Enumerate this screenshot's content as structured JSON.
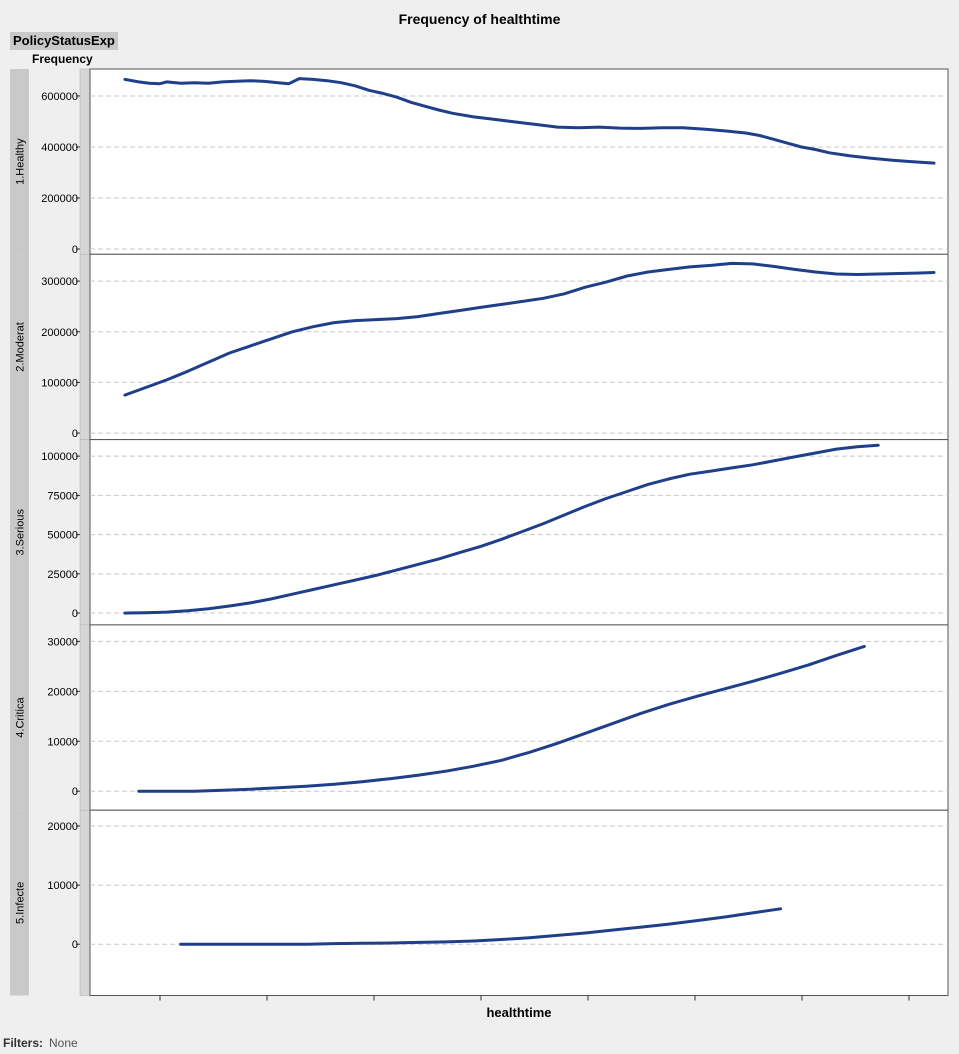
{
  "title": "Frequency of healthtime",
  "trellis_label": "PolicyStatusExp",
  "filters": {
    "label": "Filters:",
    "value": "None"
  },
  "colors": {
    "line": "#1f3f8a",
    "panel_label_bg": "#c9c9c9",
    "grid": "#c8c8c8"
  },
  "chart_data": {
    "type": "line",
    "title": "Frequency of healthtime",
    "xlabel": "healthtime",
    "ylabel": "Frequency",
    "x_tick_count": 8,
    "grid": "horizontal-dashed",
    "series_color": "#1f3f8a",
    "panels": [
      {
        "name": "1.Healthy",
        "ylim": [
          -5000,
          690000
        ],
        "yticks": [
          0,
          200000,
          400000,
          600000
        ],
        "tick_labels": [
          "0",
          "200000",
          "400000",
          "600000"
        ],
        "points": [
          [
            0.0,
            665000
          ],
          [
            0.02,
            655000
          ],
          [
            0.035,
            650000
          ],
          [
            0.05,
            648000
          ],
          [
            0.06,
            655000
          ],
          [
            0.08,
            650000
          ],
          [
            0.1,
            652000
          ],
          [
            0.12,
            650000
          ],
          [
            0.14,
            655000
          ],
          [
            0.16,
            658000
          ],
          [
            0.18,
            660000
          ],
          [
            0.2,
            657000
          ],
          [
            0.22,
            652000
          ],
          [
            0.235,
            648000
          ],
          [
            0.25,
            668000
          ],
          [
            0.27,
            665000
          ],
          [
            0.29,
            660000
          ],
          [
            0.31,
            652000
          ],
          [
            0.33,
            640000
          ],
          [
            0.35,
            622000
          ],
          [
            0.37,
            610000
          ],
          [
            0.39,
            595000
          ],
          [
            0.41,
            575000
          ],
          [
            0.43,
            560000
          ],
          [
            0.45,
            545000
          ],
          [
            0.47,
            532000
          ],
          [
            0.5,
            518000
          ],
          [
            0.53,
            508000
          ],
          [
            0.56,
            498000
          ],
          [
            0.59,
            488000
          ],
          [
            0.62,
            478000
          ],
          [
            0.65,
            475000
          ],
          [
            0.68,
            478000
          ],
          [
            0.71,
            474000
          ],
          [
            0.74,
            473000
          ],
          [
            0.77,
            475000
          ],
          [
            0.8,
            475000
          ],
          [
            0.83,
            470000
          ],
          [
            0.86,
            463000
          ],
          [
            0.89,
            455000
          ],
          [
            0.91,
            445000
          ],
          [
            0.93,
            430000
          ],
          [
            0.95,
            415000
          ],
          [
            0.97,
            400000
          ],
          [
            0.99,
            390000
          ],
          [
            1.01,
            377000
          ],
          [
            1.04,
            365000
          ],
          [
            1.07,
            356000
          ],
          [
            1.1,
            348000
          ],
          [
            1.13,
            342000
          ],
          [
            1.16,
            337000
          ]
        ]
      },
      {
        "name": "2.Moderat",
        "ylim": [
          -5000,
          345000
        ],
        "yticks": [
          0,
          100000,
          200000,
          300000
        ],
        "tick_labels": [
          "0",
          "100000",
          "200000",
          "300000"
        ],
        "points": [
          [
            0.0,
            75000
          ],
          [
            0.03,
            90000
          ],
          [
            0.06,
            105000
          ],
          [
            0.09,
            122000
          ],
          [
            0.12,
            140000
          ],
          [
            0.15,
            158000
          ],
          [
            0.18,
            172000
          ],
          [
            0.21,
            186000
          ],
          [
            0.24,
            200000
          ],
          [
            0.27,
            210000
          ],
          [
            0.3,
            218000
          ],
          [
            0.33,
            222000
          ],
          [
            0.36,
            224000
          ],
          [
            0.39,
            226000
          ],
          [
            0.42,
            230000
          ],
          [
            0.45,
            236000
          ],
          [
            0.48,
            242000
          ],
          [
            0.51,
            248000
          ],
          [
            0.54,
            254000
          ],
          [
            0.57,
            260000
          ],
          [
            0.6,
            266000
          ],
          [
            0.63,
            275000
          ],
          [
            0.66,
            288000
          ],
          [
            0.69,
            298000
          ],
          [
            0.72,
            310000
          ],
          [
            0.75,
            318000
          ],
          [
            0.78,
            323000
          ],
          [
            0.81,
            328000
          ],
          [
            0.84,
            331000
          ],
          [
            0.87,
            335000
          ],
          [
            0.9,
            334000
          ],
          [
            0.93,
            329000
          ],
          [
            0.96,
            323000
          ],
          [
            0.99,
            318000
          ],
          [
            1.02,
            314000
          ],
          [
            1.05,
            313000
          ],
          [
            1.08,
            314000
          ],
          [
            1.11,
            315000
          ],
          [
            1.14,
            316000
          ],
          [
            1.16,
            317000
          ]
        ]
      },
      {
        "name": "3.Serious",
        "ylim": [
          -5000,
          108000
        ],
        "yticks": [
          0,
          25000,
          50000,
          75000,
          100000
        ],
        "tick_labels": [
          "0",
          "25000",
          "50000",
          "75000",
          "100000"
        ],
        "points": [
          [
            0.0,
            0
          ],
          [
            0.03,
            200
          ],
          [
            0.06,
            600
          ],
          [
            0.09,
            1500
          ],
          [
            0.12,
            2800
          ],
          [
            0.15,
            4500
          ],
          [
            0.18,
            6500
          ],
          [
            0.21,
            9000
          ],
          [
            0.24,
            12000
          ],
          [
            0.27,
            15000
          ],
          [
            0.3,
            18000
          ],
          [
            0.33,
            21000
          ],
          [
            0.36,
            24000
          ],
          [
            0.39,
            27500
          ],
          [
            0.42,
            31000
          ],
          [
            0.45,
            34500
          ],
          [
            0.48,
            38500
          ],
          [
            0.51,
            42500
          ],
          [
            0.54,
            47000
          ],
          [
            0.57,
            52000
          ],
          [
            0.6,
            57000
          ],
          [
            0.63,
            62500
          ],
          [
            0.66,
            68000
          ],
          [
            0.69,
            73000
          ],
          [
            0.72,
            77500
          ],
          [
            0.75,
            82000
          ],
          [
            0.78,
            85500
          ],
          [
            0.81,
            88500
          ],
          [
            0.84,
            90500
          ],
          [
            0.87,
            92500
          ],
          [
            0.9,
            94500
          ],
          [
            0.93,
            97000
          ],
          [
            0.96,
            99500
          ],
          [
            0.99,
            102000
          ],
          [
            1.02,
            104500
          ],
          [
            1.05,
            106000
          ],
          [
            1.08,
            107000
          ]
        ]
      },
      {
        "name": "4.Critica",
        "ylim": [
          -3000,
          32500
        ],
        "yticks": [
          0,
          10000,
          20000,
          30000
        ],
        "tick_labels": [
          "0",
          "10000",
          "20000",
          "30000"
        ],
        "points": [
          [
            0.02,
            0
          ],
          [
            0.06,
            0
          ],
          [
            0.1,
            0
          ],
          [
            0.14,
            200
          ],
          [
            0.18,
            400
          ],
          [
            0.22,
            700
          ],
          [
            0.26,
            1000
          ],
          [
            0.3,
            1400
          ],
          [
            0.34,
            1900
          ],
          [
            0.38,
            2500
          ],
          [
            0.42,
            3200
          ],
          [
            0.46,
            4000
          ],
          [
            0.5,
            5000
          ],
          [
            0.54,
            6200
          ],
          [
            0.58,
            7800
          ],
          [
            0.62,
            9600
          ],
          [
            0.66,
            11600
          ],
          [
            0.7,
            13600
          ],
          [
            0.74,
            15600
          ],
          [
            0.78,
            17400
          ],
          [
            0.82,
            19000
          ],
          [
            0.86,
            20500
          ],
          [
            0.9,
            22000
          ],
          [
            0.94,
            23600
          ],
          [
            0.98,
            25300
          ],
          [
            1.02,
            27200
          ],
          [
            1.06,
            29000
          ]
        ]
      },
      {
        "name": "5.Infecte",
        "ylim": [
          -8000,
          22000
        ],
        "yticks": [
          0,
          10000,
          20000
        ],
        "tick_labels": [
          "0",
          "10000",
          "20000"
        ],
        "points": [
          [
            0.08,
            0
          ],
          [
            0.14,
            0
          ],
          [
            0.2,
            0
          ],
          [
            0.26,
            0
          ],
          [
            0.3,
            100
          ],
          [
            0.34,
            150
          ],
          [
            0.38,
            200
          ],
          [
            0.42,
            300
          ],
          [
            0.46,
            400
          ],
          [
            0.5,
            550
          ],
          [
            0.54,
            800
          ],
          [
            0.58,
            1100
          ],
          [
            0.62,
            1500
          ],
          [
            0.66,
            1900
          ],
          [
            0.7,
            2400
          ],
          [
            0.74,
            2900
          ],
          [
            0.78,
            3400
          ],
          [
            0.82,
            4000
          ],
          [
            0.86,
            4600
          ],
          [
            0.9,
            5300
          ],
          [
            0.94,
            6000
          ]
        ]
      }
    ]
  }
}
